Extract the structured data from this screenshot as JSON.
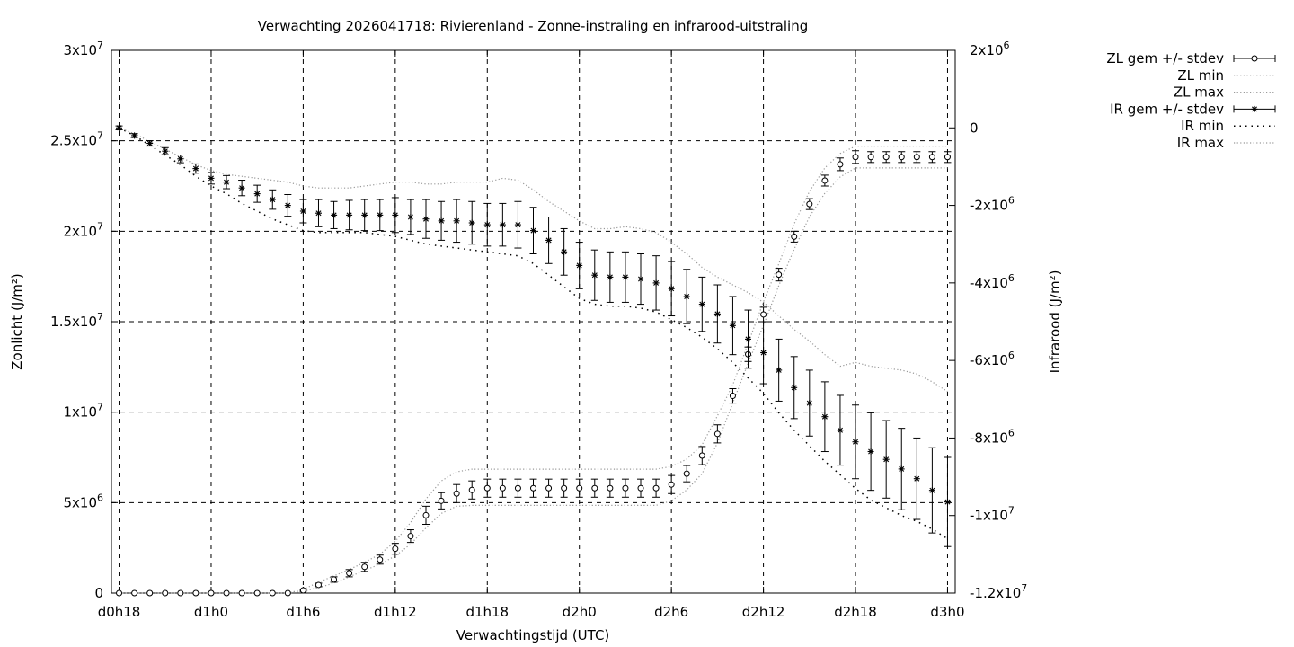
{
  "chart_data": {
    "type": "line",
    "title": "Verwachting 2026041718: Rivierenland - Zonne-instraling en infrarood-uitstraling",
    "xlabel": "Verwachtingstijd (UTC)",
    "ylabel": "Zonlicht (J/m²)",
    "y2label": "Infrarood (J/m²)",
    "xlim": [
      -0.5,
      54.5
    ],
    "ylim": [
      0,
      30000000
    ],
    "y2lim": [
      -12000000,
      2000000
    ],
    "grid": true,
    "legend_position": "outside-right",
    "x_ticks": [
      {
        "x": 0,
        "label": "d0h18"
      },
      {
        "x": 6,
        "label": "d1h0"
      },
      {
        "x": 12,
        "label": "d1h6"
      },
      {
        "x": 18,
        "label": "d1h12"
      },
      {
        "x": 24,
        "label": "d1h18"
      },
      {
        "x": 30,
        "label": "d2h0"
      },
      {
        "x": 36,
        "label": "d2h6"
      },
      {
        "x": 42,
        "label": "d2h12"
      },
      {
        "x": 48,
        "label": "d2h18"
      },
      {
        "x": 54,
        "label": "d3h0"
      }
    ],
    "y_ticks": [
      {
        "v": 0,
        "base": "0",
        "exp": ""
      },
      {
        "v": 5000000,
        "base": "5x10",
        "exp": "6"
      },
      {
        "v": 10000000,
        "base": "1x10",
        "exp": "7"
      },
      {
        "v": 15000000,
        "base": "1.5x10",
        "exp": "7"
      },
      {
        "v": 20000000,
        "base": "2x10",
        "exp": "7"
      },
      {
        "v": 25000000,
        "base": "2.5x10",
        "exp": "7"
      },
      {
        "v": 30000000,
        "base": "3x10",
        "exp": "7"
      }
    ],
    "y2_ticks": [
      {
        "v": -12000000,
        "base": "-1.2x10",
        "exp": "7"
      },
      {
        "v": -10000000,
        "base": "-1x10",
        "exp": "7"
      },
      {
        "v": -8000000,
        "base": "-8x10",
        "exp": "6"
      },
      {
        "v": -6000000,
        "base": "-6x10",
        "exp": "6"
      },
      {
        "v": -4000000,
        "base": "-4x10",
        "exp": "6"
      },
      {
        "v": -2000000,
        "base": "-2x10",
        "exp": "6"
      },
      {
        "v": 0,
        "base": "0",
        "exp": ""
      },
      {
        "v": 2000000,
        "base": "2x10",
        "exp": "6"
      }
    ],
    "series": [
      {
        "name": "ZL gem +/- stdev",
        "axis": "left",
        "marker": "circle",
        "x": [
          0,
          1,
          2,
          3,
          4,
          5,
          6,
          7,
          8,
          9,
          10,
          11,
          12,
          13,
          14,
          15,
          16,
          17,
          18,
          19,
          20,
          21,
          22,
          23,
          24,
          25,
          26,
          27,
          28,
          29,
          30,
          31,
          32,
          33,
          34,
          35,
          36,
          37,
          38,
          39,
          40,
          41,
          42,
          43,
          44,
          45,
          46,
          47,
          48,
          49,
          50,
          51,
          52,
          53,
          54
        ],
        "values": [
          0,
          0,
          0,
          0,
          0,
          0,
          0,
          0,
          0,
          0,
          0,
          0,
          150000,
          450000,
          750000,
          1100000,
          1450000,
          1850000,
          2450000,
          3150000,
          4300000,
          5100000,
          5500000,
          5700000,
          5800000,
          5800000,
          5800000,
          5800000,
          5800000,
          5800000,
          5800000,
          5800000,
          5800000,
          5800000,
          5800000,
          5800000,
          6000000,
          6600000,
          7600000,
          8800000,
          10900000,
          13200000,
          15400000,
          17600000,
          19700000,
          21500000,
          22800000,
          23700000,
          24100000,
          24100000,
          24100000,
          24100000,
          24100000,
          24100000,
          24100000
        ],
        "stdev": [
          0,
          0,
          0,
          0,
          0,
          0,
          0,
          0,
          0,
          0,
          0,
          0,
          50000,
          100000,
          150000,
          200000,
          250000,
          250000,
          300000,
          350000,
          500000,
          450000,
          500000,
          500000,
          500000,
          500000,
          500000,
          500000,
          500000,
          500000,
          500000,
          500000,
          500000,
          500000,
          500000,
          500000,
          500000,
          450000,
          500000,
          500000,
          400000,
          400000,
          400000,
          350000,
          300000,
          300000,
          300000,
          350000,
          350000,
          300000,
          300000,
          300000,
          300000,
          300000,
          300000
        ]
      },
      {
        "name": "ZL min",
        "axis": "left",
        "style": "dotted",
        "x": [
          0,
          1,
          2,
          3,
          4,
          5,
          6,
          7,
          8,
          9,
          10,
          11,
          12,
          13,
          14,
          15,
          16,
          17,
          18,
          19,
          20,
          21,
          22,
          23,
          24,
          25,
          26,
          27,
          28,
          29,
          30,
          31,
          32,
          33,
          34,
          35,
          36,
          37,
          38,
          39,
          40,
          41,
          42,
          43,
          44,
          45,
          46,
          47,
          48,
          49,
          50,
          51,
          52,
          53,
          54
        ],
        "values": [
          0,
          0,
          0,
          0,
          0,
          0,
          0,
          0,
          0,
          0,
          0,
          0,
          100000,
          300000,
          550000,
          900000,
          1250000,
          1600000,
          2050000,
          2700000,
          3600000,
          4400000,
          4800000,
          4850000,
          4850000,
          4850000,
          4850000,
          4850000,
          4850000,
          4850000,
          4850000,
          4850000,
          4850000,
          4850000,
          4850000,
          4850000,
          5100000,
          5700000,
          6600000,
          8300000,
          10500000,
          12700000,
          14800000,
          17000000,
          19000000,
          20800000,
          22100000,
          23000000,
          23500000,
          23500000,
          23500000,
          23500000,
          23500000,
          23500000,
          23500000
        ]
      },
      {
        "name": "ZL max",
        "axis": "left",
        "style": "dotted",
        "x": [
          0,
          1,
          2,
          3,
          4,
          5,
          6,
          7,
          8,
          9,
          10,
          11,
          12,
          13,
          14,
          15,
          16,
          17,
          18,
          19,
          20,
          21,
          22,
          23,
          24,
          25,
          26,
          27,
          28,
          29,
          30,
          31,
          32,
          33,
          34,
          35,
          36,
          37,
          38,
          39,
          40,
          41,
          42,
          43,
          44,
          45,
          46,
          47,
          48,
          49,
          50,
          51,
          52,
          53,
          54
        ],
        "values": [
          0,
          0,
          0,
          0,
          0,
          0,
          0,
          0,
          0,
          0,
          0,
          0,
          200000,
          600000,
          950000,
          1300000,
          1700000,
          2150000,
          2850000,
          3900000,
          5200000,
          6200000,
          6700000,
          6850000,
          6850000,
          6850000,
          6850000,
          6850000,
          6850000,
          6850000,
          6850000,
          6850000,
          6850000,
          6850000,
          6850000,
          6850000,
          7000000,
          7400000,
          8200000,
          9800000,
          11500000,
          13800000,
          16100000,
          18200000,
          20400000,
          22200000,
          23500000,
          24300000,
          24700000,
          24700000,
          24700000,
          24700000,
          24700000,
          24700000,
          24700000
        ]
      },
      {
        "name": "IR gem +/- stdev",
        "axis": "right",
        "marker": "star",
        "x": [
          0,
          1,
          2,
          3,
          4,
          5,
          6,
          7,
          8,
          9,
          10,
          11,
          12,
          13,
          14,
          15,
          16,
          17,
          18,
          19,
          20,
          21,
          22,
          23,
          24,
          25,
          26,
          27,
          28,
          29,
          30,
          31,
          32,
          33,
          34,
          35,
          36,
          37,
          38,
          39,
          40,
          41,
          42,
          43,
          44,
          45,
          46,
          47,
          48,
          49,
          50,
          51,
          52,
          53,
          54
        ],
        "values": [
          0,
          -200000,
          -400000,
          -600000,
          -800000,
          -1050000,
          -1300000,
          -1400000,
          -1550000,
          -1700000,
          -1850000,
          -2000000,
          -2150000,
          -2200000,
          -2250000,
          -2250000,
          -2250000,
          -2250000,
          -2250000,
          -2300000,
          -2350000,
          -2400000,
          -2400000,
          -2450000,
          -2500000,
          -2500000,
          -2500000,
          -2650000,
          -2900000,
          -3200000,
          -3550000,
          -3800000,
          -3850000,
          -3850000,
          -3900000,
          -4000000,
          -4150000,
          -4350000,
          -4550000,
          -4800000,
          -5100000,
          -5450000,
          -5800000,
          -6250000,
          -6700000,
          -7100000,
          -7450000,
          -7800000,
          -8100000,
          -8350000,
          -8550000,
          -8800000,
          -9050000,
          -9350000,
          -9650000
        ],
        "stdev": [
          50000,
          50000,
          70000,
          90000,
          100000,
          120000,
          150000,
          170000,
          200000,
          220000,
          250000,
          280000,
          300000,
          350000,
          350000,
          380000,
          400000,
          400000,
          450000,
          450000,
          500000,
          500000,
          550000,
          550000,
          550000,
          550000,
          600000,
          600000,
          600000,
          600000,
          600000,
          650000,
          650000,
          650000,
          650000,
          700000,
          700000,
          700000,
          700000,
          750000,
          750000,
          750000,
          800000,
          800000,
          800000,
          850000,
          900000,
          900000,
          950000,
          1000000,
          1000000,
          1050000,
          1050000,
          1100000,
          1150000
        ]
      },
      {
        "name": "IR min",
        "axis": "right",
        "style": "dotted",
        "x": [
          0,
          1,
          2,
          3,
          4,
          5,
          6,
          7,
          8,
          9,
          10,
          11,
          12,
          13,
          14,
          15,
          16,
          17,
          18,
          19,
          20,
          21,
          22,
          23,
          24,
          25,
          26,
          27,
          28,
          29,
          30,
          31,
          32,
          33,
          34,
          35,
          36,
          37,
          38,
          39,
          40,
          41,
          42,
          43,
          44,
          45,
          46,
          47,
          48,
          49,
          50,
          51,
          52,
          53,
          54
        ],
        "values": [
          0,
          -200000,
          -450000,
          -700000,
          -950000,
          -1250000,
          -1500000,
          -1700000,
          -1950000,
          -2150000,
          -2350000,
          -2500000,
          -2650000,
          -2700000,
          -2700000,
          -2700000,
          -2700000,
          -2750000,
          -2800000,
          -2900000,
          -3000000,
          -3050000,
          -3100000,
          -3150000,
          -3200000,
          -3250000,
          -3300000,
          -3500000,
          -3800000,
          -4100000,
          -4400000,
          -4550000,
          -4600000,
          -4600000,
          -4650000,
          -4750000,
          -4950000,
          -5150000,
          -5400000,
          -5700000,
          -6050000,
          -6450000,
          -6850000,
          -7350000,
          -7800000,
          -8200000,
          -8600000,
          -8950000,
          -9300000,
          -9600000,
          -9800000,
          -10000000,
          -10150000,
          -10350000,
          -10600000
        ]
      },
      {
        "name": "IR max",
        "axis": "right",
        "style": "dotted",
        "x": [
          0,
          1,
          2,
          3,
          4,
          5,
          6,
          7,
          8,
          9,
          10,
          11,
          12,
          13,
          14,
          15,
          16,
          17,
          18,
          19,
          20,
          21,
          22,
          23,
          24,
          25,
          26,
          27,
          28,
          29,
          30,
          31,
          32,
          33,
          34,
          35,
          36,
          37,
          38,
          39,
          40,
          41,
          42,
          43,
          44,
          45,
          46,
          47,
          48,
          49,
          50,
          51,
          52,
          53,
          54
        ],
        "values": [
          0,
          -150000,
          -350000,
          -550000,
          -750000,
          -950000,
          -1100000,
          -1200000,
          -1250000,
          -1300000,
          -1350000,
          -1400000,
          -1500000,
          -1550000,
          -1550000,
          -1550000,
          -1500000,
          -1450000,
          -1400000,
          -1400000,
          -1450000,
          -1450000,
          -1400000,
          -1400000,
          -1400000,
          -1300000,
          -1350000,
          -1600000,
          -1900000,
          -2150000,
          -2400000,
          -2600000,
          -2600000,
          -2550000,
          -2600000,
          -2700000,
          -2950000,
          -3250000,
          -3600000,
          -3850000,
          -4050000,
          -4250000,
          -4500000,
          -4850000,
          -5200000,
          -5500000,
          -5850000,
          -6150000,
          -6050000,
          -6150000,
          -6200000,
          -6250000,
          -6350000,
          -6550000,
          -6800000
        ]
      }
    ]
  }
}
